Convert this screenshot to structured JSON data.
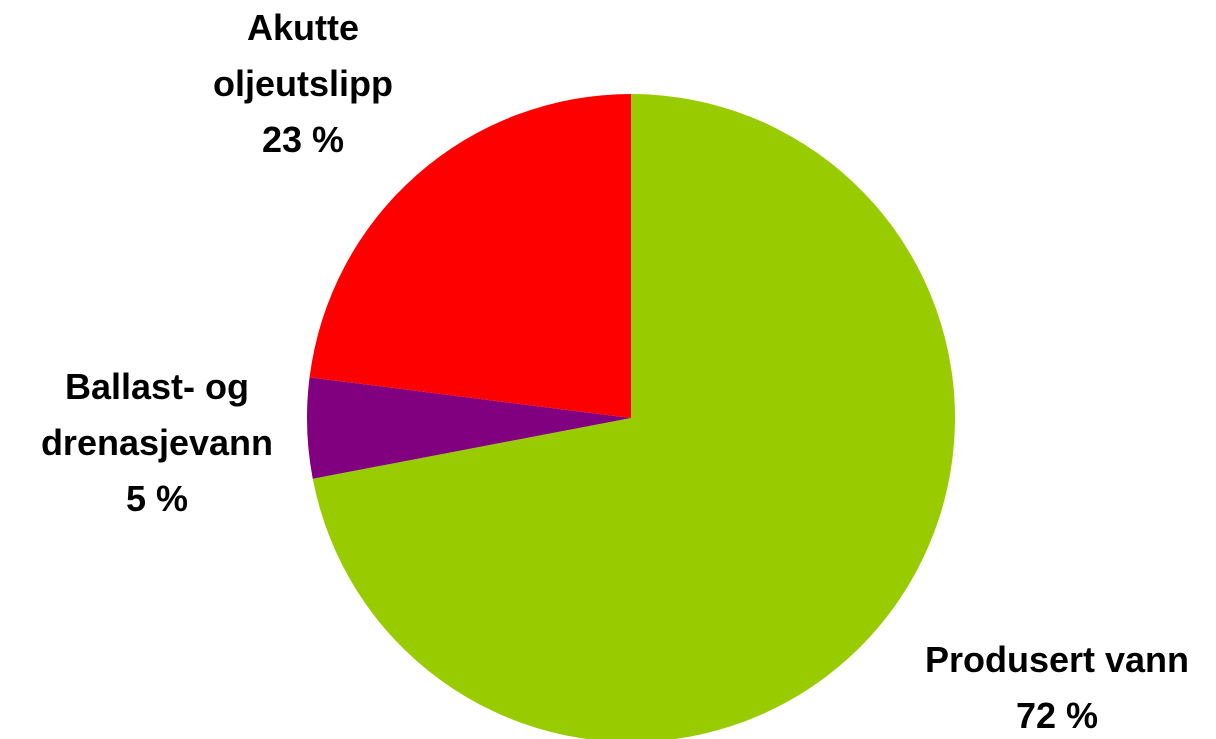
{
  "chart_data": {
    "type": "pie",
    "categories": [
      "Produsert vann",
      "Ballast- og drenasjevann",
      "Akutte oljeutslipp"
    ],
    "values": [
      72,
      5,
      23
    ],
    "value_labels": [
      "72 %",
      "5 %",
      "23 %"
    ],
    "colors": [
      "#99cc00",
      "#800080",
      "#ff0000"
    ]
  }
}
